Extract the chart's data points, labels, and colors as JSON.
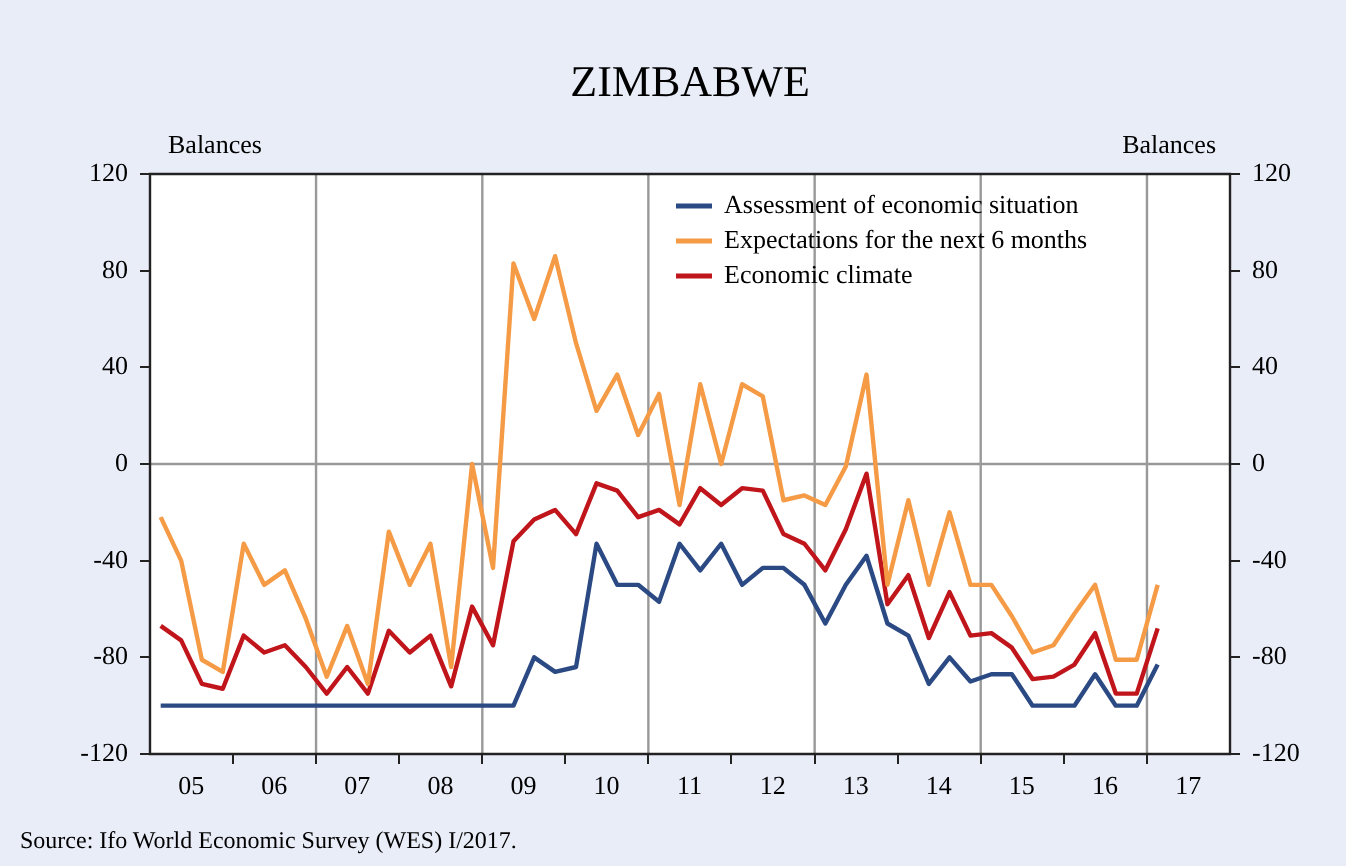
{
  "chart_data": {
    "type": "line",
    "title": "ZIMBABWE",
    "ylabel": "Balances",
    "y2label": "Balances",
    "x": [
      "2005-01",
      "2005-04",
      "2005-07",
      "2005-10",
      "2006-01",
      "2006-04",
      "2006-07",
      "2006-10",
      "2007-01",
      "2007-04",
      "2007-07",
      "2007-10",
      "2008-01",
      "2008-04",
      "2008-07",
      "2008-10",
      "2009-01",
      "2009-04",
      "2009-07",
      "2009-10",
      "2010-01",
      "2010-04",
      "2010-07",
      "2010-10",
      "2011-01",
      "2011-04",
      "2011-07",
      "2011-10",
      "2012-01",
      "2012-04",
      "2012-07",
      "2012-10",
      "2013-01",
      "2013-04",
      "2013-07",
      "2013-10",
      "2014-01",
      "2014-04",
      "2014-07",
      "2014-10",
      "2015-01",
      "2015-04",
      "2015-07",
      "2015-10",
      "2016-01",
      "2016-04",
      "2016-07",
      "2016-10",
      "2017-01"
    ],
    "series": [
      {
        "name": "Assessment of economic situation",
        "color": "#2b4a84",
        "values": [
          -100,
          -100,
          -100,
          -100,
          -100,
          -100,
          -100,
          -100,
          -100,
          -100,
          -100,
          -100,
          -100,
          -100,
          -100,
          -100,
          -100,
          -100,
          -80,
          -86,
          -84,
          -33,
          -50,
          -50,
          -57,
          -33,
          -44,
          -33,
          -50,
          -43,
          -43,
          -50,
          -66,
          -50,
          -38,
          -66,
          -71,
          -91,
          -80,
          -90,
          -87,
          -87,
          -100,
          -100,
          -100,
          -87,
          -100,
          -100,
          -83
        ]
      },
      {
        "name": "Expectations for the next 6 months",
        "color": "#f59a45",
        "values": [
          -22,
          -40,
          -81,
          -86,
          -33,
          -50,
          -44,
          -64,
          -88,
          -67,
          -91,
          -28,
          -50,
          -33,
          -84,
          0,
          -43,
          83,
          60,
          86,
          50,
          22,
          37,
          12,
          29,
          -17,
          33,
          0,
          33,
          28,
          -15,
          -13,
          -17,
          -1,
          37,
          -50,
          -15,
          -50,
          -20,
          -50,
          -50,
          -63,
          -78,
          -75,
          -62,
          -50,
          -81,
          -81,
          -50
        ]
      },
      {
        "name": "Economic climate",
        "color": "#c0151b",
        "values": [
          -67,
          -73,
          -91,
          -93,
          -71,
          -78,
          -75,
          -84,
          -95,
          -84,
          -95,
          -69,
          -78,
          -71,
          -92,
          -59,
          -75,
          -32,
          -23,
          -19,
          -29,
          -8,
          -11,
          -22,
          -19,
          -25,
          -10,
          -17,
          -10,
          -11,
          -29,
          -33,
          -44,
          -27,
          -4,
          -58,
          -46,
          -72,
          -53,
          -71,
          -70,
          -76,
          -89,
          -88,
          -83,
          -70,
          -95,
          -95,
          -68
        ]
      }
    ],
    "xlim": [
      "2004-11-15",
      "2017-11-15"
    ],
    "xticks": [
      {
        "value": "2005-05-15",
        "label": "05"
      },
      {
        "value": "2005-11-15",
        "label": null
      },
      {
        "value": "2006-05-15",
        "label": "06"
      },
      {
        "value": "2006-11-15",
        "label": null
      },
      {
        "value": "2007-05-15",
        "label": "07"
      },
      {
        "value": "2007-11-15",
        "label": null
      },
      {
        "value": "2008-05-15",
        "label": "08"
      },
      {
        "value": "2008-11-15",
        "label": null
      },
      {
        "value": "2009-05-15",
        "label": "09"
      },
      {
        "value": "2009-11-15",
        "label": null
      },
      {
        "value": "2010-05-15",
        "label": "10"
      },
      {
        "value": "2010-11-15",
        "label": null
      },
      {
        "value": "2011-05-15",
        "label": "11"
      },
      {
        "value": "2011-11-15",
        "label": null
      },
      {
        "value": "2012-05-15",
        "label": "12"
      },
      {
        "value": "2012-11-15",
        "label": null
      },
      {
        "value": "2013-05-15",
        "label": "13"
      },
      {
        "value": "2013-11-15",
        "label": null
      },
      {
        "value": "2014-05-15",
        "label": "14"
      },
      {
        "value": "2014-11-15",
        "label": null
      },
      {
        "value": "2015-05-15",
        "label": "15"
      },
      {
        "value": "2015-11-15",
        "label": null
      },
      {
        "value": "2016-05-15",
        "label": "16"
      },
      {
        "value": "2016-11-15",
        "label": null
      },
      {
        "value": "2017-05-15",
        "label": "17"
      }
    ],
    "ylim": [
      -120,
      120
    ],
    "yticks": [
      -120,
      -80,
      -40,
      0,
      40,
      80,
      120
    ],
    "y2lim": [
      -120,
      120
    ],
    "y2ticks": [
      -120,
      -80,
      -40,
      0,
      40,
      80,
      120
    ],
    "ref_lines": [
      {
        "axis": "y",
        "value": 0,
        "color": "#999999"
      },
      {
        "axis": "x",
        "value": "2006-11-15",
        "color": "#999999"
      },
      {
        "axis": "x",
        "value": "2008-11-15",
        "color": "#999999"
      },
      {
        "axis": "x",
        "value": "2010-11-15",
        "color": "#999999"
      },
      {
        "axis": "x",
        "value": "2012-11-15",
        "color": "#999999"
      },
      {
        "axis": "x",
        "value": "2014-11-15",
        "color": "#999999"
      },
      {
        "axis": "x",
        "value": "2016-11-15",
        "color": "#999999"
      }
    ],
    "grid": false,
    "legend": "top right",
    "marker": "none",
    "line_style": "solid",
    "annotations": [
      "Source: Ifo World Economic Survey (WES) I/2017."
    ]
  }
}
